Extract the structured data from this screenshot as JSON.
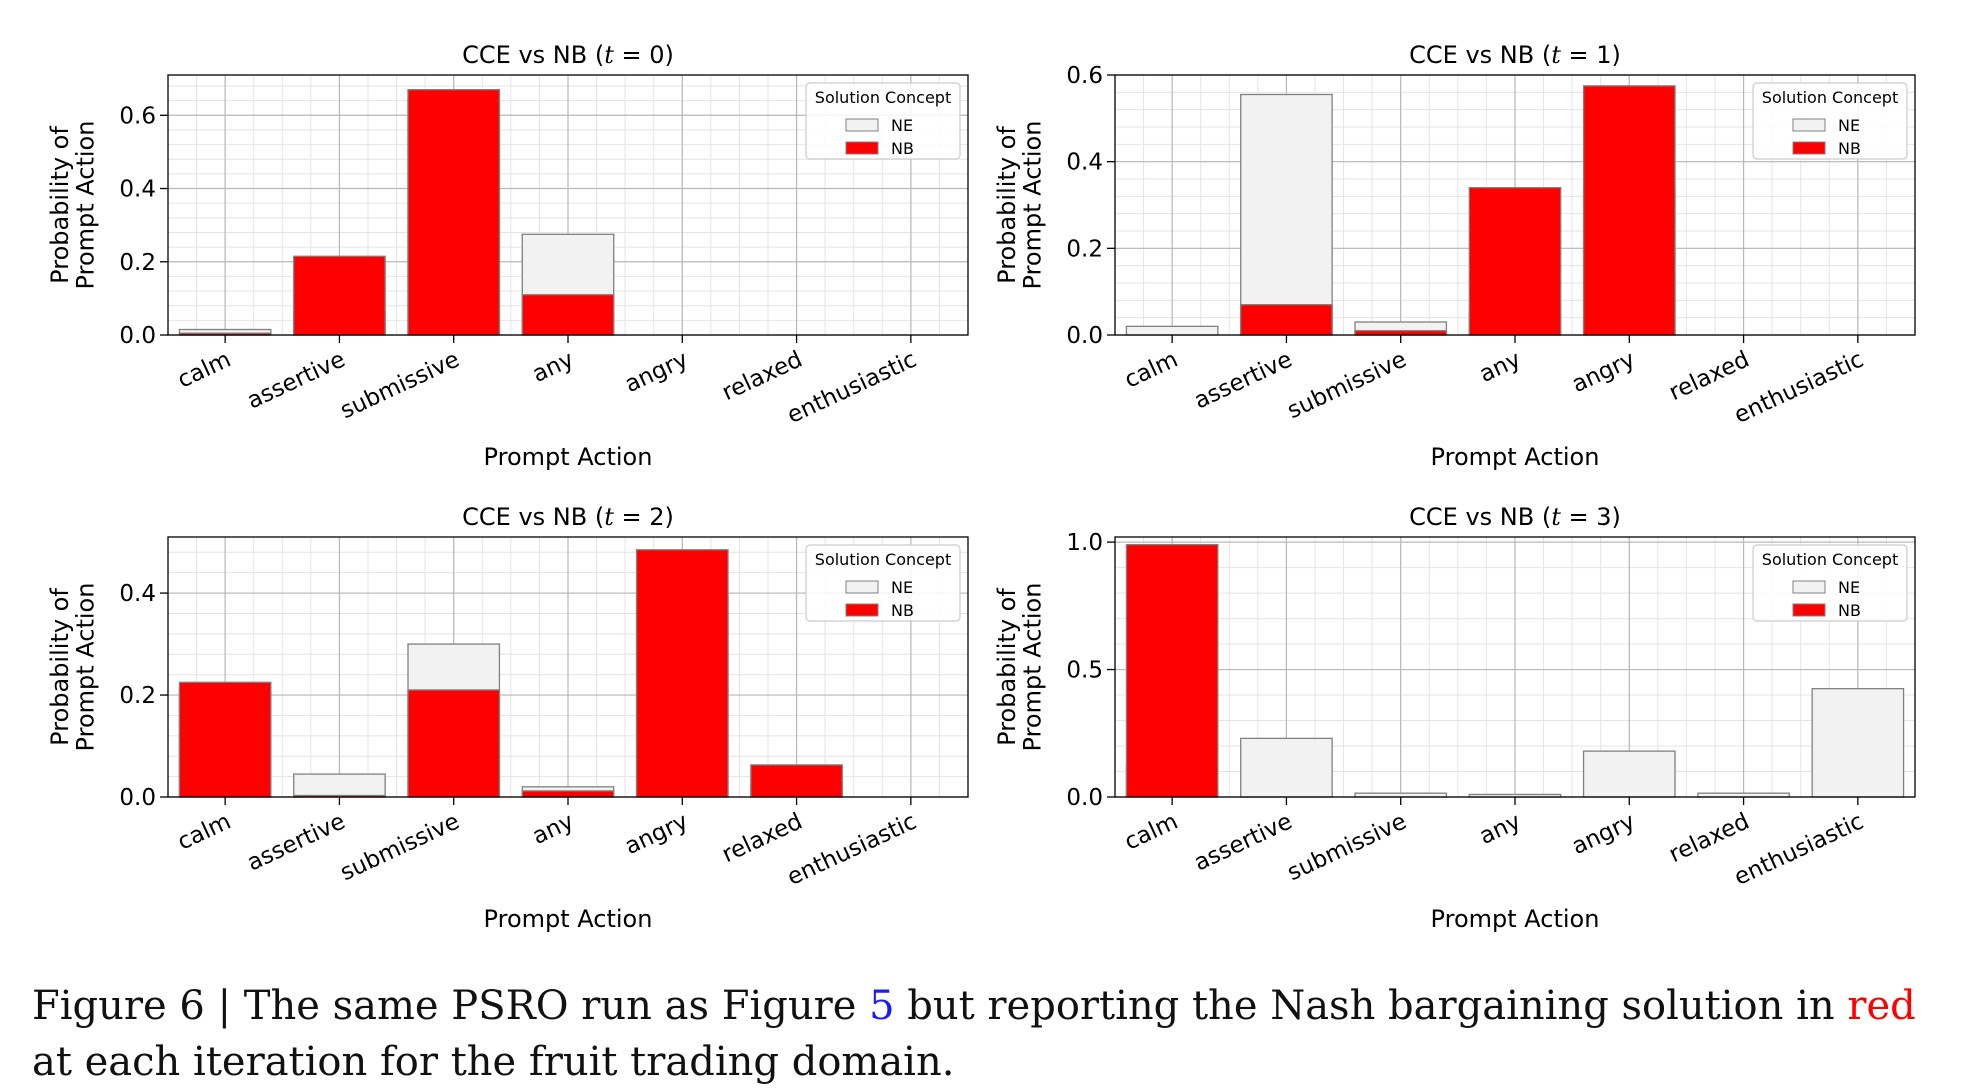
{
  "chart_data": [
    {
      "type": "bar",
      "title_prefix": "CCE vs NB (",
      "title_var": "t",
      "title_suffix": " = 0)",
      "xlabel": "Prompt Action",
      "ylabel_lines": [
        "Probability of",
        "Prompt Action"
      ],
      "categories": [
        "calm",
        "assertive",
        "submissive",
        "any",
        "angry",
        "relaxed",
        "enthusiastic"
      ],
      "ylim": [
        0,
        0.71
      ],
      "yticks": [
        0.0,
        0.2,
        0.4,
        0.6
      ],
      "legend": {
        "title": "Solution Concept",
        "entries": [
          "NE",
          "NB"
        ],
        "position": "top-right"
      },
      "grid": true,
      "series": [
        {
          "name": "NE",
          "color": "#f2f2f2",
          "values": [
            0.015,
            0.065,
            0.64,
            0.275,
            0.0,
            0.0,
            0.0
          ]
        },
        {
          "name": "NB",
          "color": "#ff0000",
          "values": [
            0.005,
            0.215,
            0.67,
            0.11,
            0.0,
            0.0,
            0.0
          ]
        }
      ]
    },
    {
      "type": "bar",
      "title_prefix": "CCE vs NB (",
      "title_var": "t",
      "title_suffix": " = 1)",
      "xlabel": "Prompt Action",
      "ylabel_lines": [
        "Probability of",
        "Prompt Action"
      ],
      "categories": [
        "calm",
        "assertive",
        "submissive",
        "any",
        "angry",
        "relaxed",
        "enthusiastic"
      ],
      "ylim": [
        0,
        0.6
      ],
      "yticks": [
        0.0,
        0.2,
        0.4,
        0.6
      ],
      "legend": {
        "title": "Solution Concept",
        "entries": [
          "NE",
          "NB"
        ],
        "position": "top-right"
      },
      "grid": true,
      "series": [
        {
          "name": "NE",
          "color": "#f2f2f2",
          "values": [
            0.02,
            0.555,
            0.03,
            0.055,
            0.34,
            0.0,
            0.0
          ]
        },
        {
          "name": "NB",
          "color": "#ff0000",
          "values": [
            0.0,
            0.07,
            0.01,
            0.34,
            0.575,
            0.0,
            0.0
          ]
        }
      ]
    },
    {
      "type": "bar",
      "title_prefix": "CCE vs NB (",
      "title_var": "t",
      "title_suffix": " = 2)",
      "xlabel": "Prompt Action",
      "ylabel_lines": [
        "Probability of",
        "Prompt Action"
      ],
      "categories": [
        "calm",
        "assertive",
        "submissive",
        "any",
        "angry",
        "relaxed",
        "enthusiastic"
      ],
      "ylim": [
        0,
        0.51
      ],
      "yticks": [
        0.0,
        0.2,
        0.4
      ],
      "legend": {
        "title": "Solution Concept",
        "entries": [
          "NE",
          "NB"
        ],
        "position": "top-right"
      },
      "grid": true,
      "series": [
        {
          "name": "NE",
          "color": "#f2f2f2",
          "values": [
            0.21,
            0.045,
            0.3,
            0.02,
            0.395,
            0.025,
            0.0
          ]
        },
        {
          "name": "NB",
          "color": "#ff0000",
          "values": [
            0.225,
            0.003,
            0.21,
            0.012,
            0.485,
            0.063,
            0.0
          ]
        }
      ]
    },
    {
      "type": "bar",
      "title_prefix": "CCE vs NB (",
      "title_var": "t",
      "title_suffix": " = 3)",
      "xlabel": "Prompt Action",
      "ylabel_lines": [
        "Probability of",
        "Prompt Action"
      ],
      "categories": [
        "calm",
        "assertive",
        "submissive",
        "any",
        "angry",
        "relaxed",
        "enthusiastic"
      ],
      "ylim": [
        0,
        1.02
      ],
      "yticks": [
        0.0,
        0.5,
        1.0
      ],
      "legend": {
        "title": "Solution Concept",
        "entries": [
          "NE",
          "NB"
        ],
        "position": "top-right"
      },
      "grid": true,
      "series": [
        {
          "name": "NE",
          "color": "#f2f2f2",
          "values": [
            0.12,
            0.23,
            0.015,
            0.01,
            0.18,
            0.015,
            0.425
          ]
        },
        {
          "name": "NB",
          "color": "#ff0000",
          "values": [
            0.99,
            0.0,
            0.0,
            0.0,
            0.0,
            0.0,
            0.0
          ]
        }
      ]
    }
  ],
  "caption": {
    "prefix": "Figure 6 | The same PSRO run as Figure ",
    "ref": "5",
    "middle": " but reporting the Nash bargaining solution in ",
    "highlight": "red",
    "suffix": " at each iteration for the fruit trading domain."
  }
}
